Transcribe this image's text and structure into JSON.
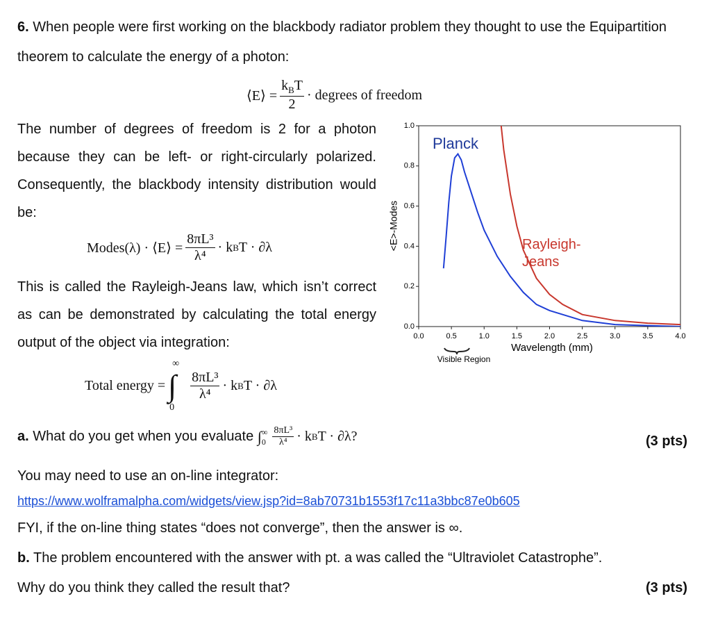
{
  "problem": {
    "number": "6.",
    "intro": "When people were first working on the blackbody radiator problem they thought to use the Equipartition theorem to calculate the energy of a photon:",
    "eq_energy": {
      "lhs": "⟨E⟩ =",
      "num": "k",
      "num_sub": "B",
      "num_end": "T",
      "den": "2",
      "rhs": "· degrees of freedom"
    },
    "para1": "The number of degrees of freedom is 2 for a photon because they can be left- or right-circularly polarized. Consequently, the blackbody intensity distribution would be:",
    "eq_rj": {
      "lhs": "Modes(λ) · ⟨E⟩ =",
      "num": "8πL³",
      "den": "λ⁴",
      "rhs_k": "· k",
      "rhs_sub": "B",
      "rhs_end": "T · ∂λ"
    },
    "para2": "This is called the Rayleigh-Jeans law, which isn’t correct as can be demonstrated by calculating the total energy output of the object via integration:",
    "eq_total": {
      "lhs": "Total energy =",
      "integral": "∫",
      "upper": "∞",
      "lower": "0",
      "num": "8πL³",
      "den": "λ⁴",
      "rhs_k": "· k",
      "rhs_sub": "B",
      "rhs_end": "T · ∂λ"
    },
    "part_a": {
      "label": "a.",
      "text": "What do you get when you evaluate",
      "integral": "∫",
      "upper": "∞",
      "lower": "0",
      "num": "8πL³",
      "den": "λ⁴",
      "rhs_k": "· k",
      "rhs_sub": "B",
      "rhs_end": "T · ∂λ?",
      "points": "(3 pts)",
      "hint": "You may need to use an on-line integrator:",
      "link": "https://www.wolframalpha.com/widgets/view.jsp?id=8ab70731b1553f17c11a3bbc87e0b605",
      "fyi": "FYI, if the on-line thing states “does not converge”, then the answer is ∞."
    },
    "part_b": {
      "label": "b.",
      "text": "The problem encountered with the answer with pt. a was called the “Ultraviolet Catastrophe”.",
      "text2": "Why do you think they called the result that?",
      "points": "(3 pts)"
    }
  },
  "chart_data": {
    "type": "line",
    "x_label": "Wavelength (mm)",
    "y_label": "<E>-Modes",
    "annotation": "Visible Region",
    "xlim": [
      0,
      4
    ],
    "ylim": [
      0,
      1
    ],
    "xticks": [
      {
        "value": 0,
        "label": "0.0"
      },
      {
        "value": 0.5,
        "label": "0.5"
      },
      {
        "value": 1,
        "label": "1.0"
      },
      {
        "value": 1.5,
        "label": "1.5"
      },
      {
        "value": 2,
        "label": "2.0"
      },
      {
        "value": 2.5,
        "label": "2.5"
      },
      {
        "value": 3,
        "label": "3.0"
      },
      {
        "value": 3.5,
        "label": "3.5"
      },
      {
        "value": 4,
        "label": "4.0"
      }
    ],
    "yticks": [
      {
        "value": 0,
        "label": "0.0"
      },
      {
        "value": 0.2,
        "label": "0.2"
      },
      {
        "value": 0.4,
        "label": "0.4"
      },
      {
        "value": 0.6,
        "label": "0.6"
      },
      {
        "value": 0.8,
        "label": "0.8"
      },
      {
        "value": 1,
        "label": "1.0"
      }
    ],
    "series": [
      {
        "name": "Planck",
        "color": "#1f3fd6",
        "x": [
          0.38,
          0.42,
          0.46,
          0.5,
          0.55,
          0.6,
          0.65,
          0.7,
          0.8,
          0.9,
          1.0,
          1.2,
          1.4,
          1.6,
          1.8,
          2.0,
          2.5,
          3.0,
          3.5,
          4.0
        ],
        "values": [
          0.29,
          0.45,
          0.62,
          0.75,
          0.84,
          0.86,
          0.83,
          0.77,
          0.67,
          0.57,
          0.48,
          0.35,
          0.25,
          0.17,
          0.11,
          0.08,
          0.03,
          0.01,
          0.005,
          0.0
        ]
      },
      {
        "name": "Rayleigh-Jeans",
        "color": "#c8372d",
        "x": [
          1.26,
          1.3,
          1.4,
          1.5,
          1.6,
          1.8,
          2.0,
          2.2,
          2.5,
          3.0,
          3.5,
          4.0
        ],
        "values": [
          1.0,
          0.88,
          0.66,
          0.5,
          0.38,
          0.24,
          0.16,
          0.11,
          0.06,
          0.03,
          0.017,
          0.01
        ]
      }
    ]
  }
}
